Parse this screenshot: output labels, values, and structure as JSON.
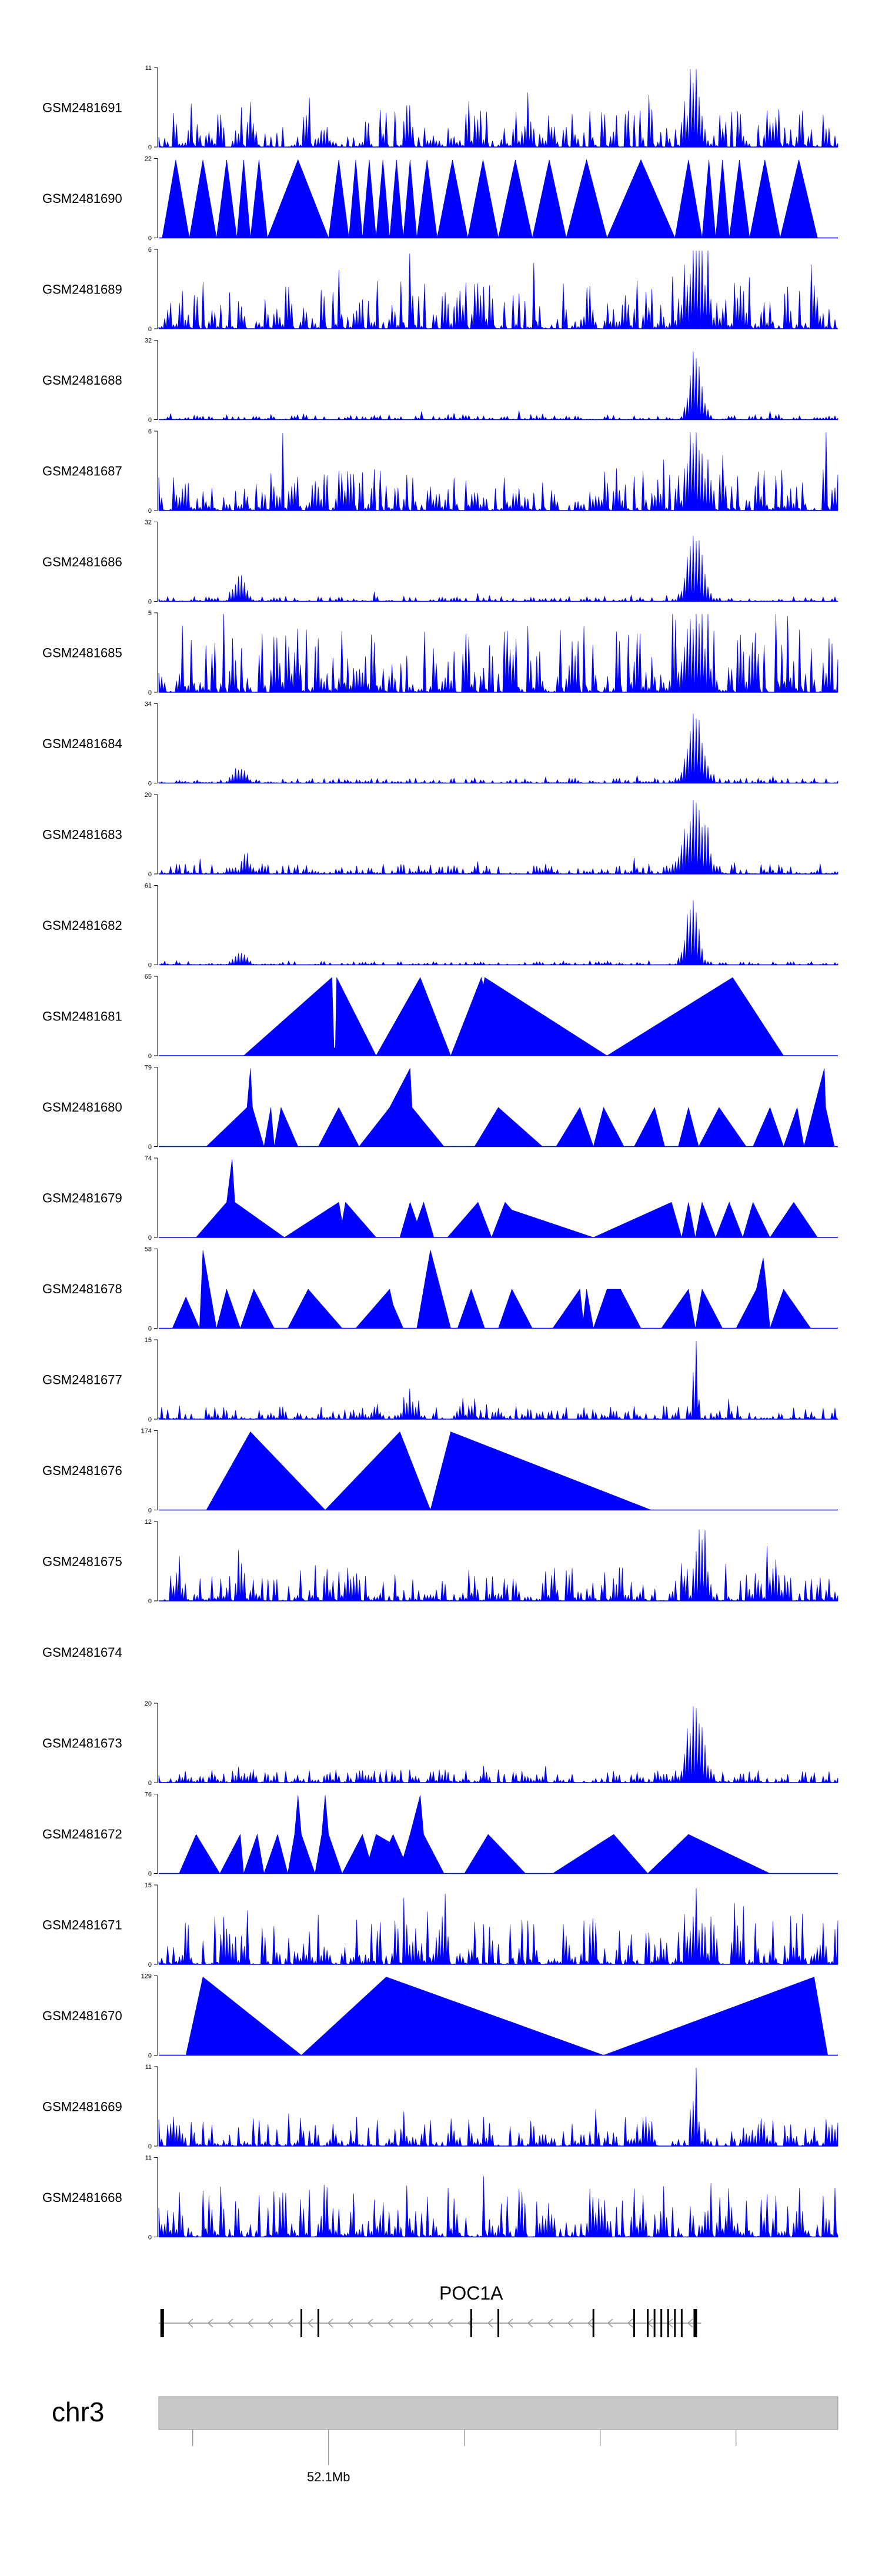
{
  "chart_data": {
    "type": "area",
    "title": "",
    "xlabel": "",
    "ylabel": "",
    "track_color": "#0000FF",
    "n_bins": 230,
    "tracks": [
      {
        "name": "GSM2481691",
        "ymax": 11,
        "pattern": "noise",
        "seed": 1,
        "level": 0.22,
        "peakAt": 0.79,
        "peakH": 1.0,
        "peakW": 0.012
      },
      {
        "name": "GSM2481690",
        "ymax": 22,
        "pattern": "tri",
        "peaks": [
          0.005,
          0.045,
          0.085,
          0.115,
          0.135,
          0.16,
          0.25,
          0.28,
          0.3,
          0.32,
          0.34,
          0.36,
          0.38,
          0.41,
          0.455,
          0.5,
          0.55,
          0.6,
          0.66,
          0.76,
          0.8,
          0.82,
          0.84,
          0.87,
          0.915
        ],
        "end": 0.97,
        "seed": 2
      },
      {
        "name": "GSM2481689",
        "ymax": 6,
        "pattern": "noise",
        "seed": 3,
        "level": 0.3,
        "peakAt": 0.79,
        "peakH": 1.0,
        "peakW": 0.02
      },
      {
        "name": "GSM2481688",
        "ymax": 32,
        "pattern": "noise",
        "seed": 4,
        "level": 0.03,
        "peakAt": 0.79,
        "peakH": 0.95,
        "peakW": 0.012
      },
      {
        "name": "GSM2481687",
        "ymax": 6,
        "pattern": "noise",
        "seed": 5,
        "level": 0.25,
        "peakAt": 0.79,
        "peakH": 0.95,
        "peakW": 0.015
      },
      {
        "name": "GSM2481686",
        "ymax": 32,
        "pattern": "noise",
        "seed": 6,
        "level": 0.03,
        "peakAt": 0.79,
        "peakH": 0.95,
        "peakW": 0.015,
        "smallAt": 0.12,
        "smallH": 0.3
      },
      {
        "name": "GSM2481685",
        "ymax": 5,
        "pattern": "noise",
        "seed": 7,
        "level": 0.4,
        "peakAt": 0.79,
        "peakH": 1.0,
        "peakW": 0.02
      },
      {
        "name": "GSM2481684",
        "ymax": 34,
        "pattern": "noise",
        "seed": 8,
        "level": 0.03,
        "peakAt": 0.79,
        "peakH": 0.97,
        "peakW": 0.015,
        "smallAt": 0.12,
        "smallH": 0.18
      },
      {
        "name": "GSM2481683",
        "ymax": 20,
        "pattern": "noise",
        "seed": 9,
        "level": 0.06,
        "peakAt": 0.79,
        "peakH": 0.95,
        "peakW": 0.02,
        "smallAt": 0.13,
        "smallH": 0.15
      },
      {
        "name": "GSM2481682",
        "ymax": 61,
        "pattern": "noise",
        "seed": 10,
        "level": 0.02,
        "peakAt": 0.785,
        "peakH": 0.97,
        "peakW": 0.012,
        "smallAt": 0.12,
        "smallH": 0.15
      },
      {
        "name": "GSM2481681",
        "ymax": 65,
        "pattern": "tri",
        "peaks": [
          0.26,
          0.38,
          0.48
        ],
        "end": 0.67,
        "seed": 11,
        "start": 0.125,
        "custom": [
          [
            0.125,
            0
          ],
          [
            0.255,
            1
          ],
          [
            0.258,
            0.1
          ],
          [
            0.26,
            0.1
          ],
          [
            0.262,
            1
          ],
          [
            0.32,
            0
          ],
          [
            0.385,
            1
          ],
          [
            0.43,
            0
          ],
          [
            0.475,
            1
          ],
          [
            0.478,
            0.9
          ],
          [
            0.48,
            1
          ],
          [
            0.66,
            0
          ],
          [
            0.845,
            1
          ],
          [
            0.92,
            0
          ]
        ]
      },
      {
        "name": "GSM2481680",
        "ymax": 79,
        "pattern": "custom",
        "custom": [
          [
            0.07,
            0
          ],
          [
            0.13,
            0.5
          ],
          [
            0.135,
            1
          ],
          [
            0.138,
            0.5
          ],
          [
            0.155,
            0
          ],
          [
            0.165,
            0.5
          ],
          [
            0.17,
            0
          ],
          [
            0.18,
            0.5
          ],
          [
            0.205,
            0
          ],
          [
            0.235,
            0
          ],
          [
            0.265,
            0.5
          ],
          [
            0.295,
            0
          ],
          [
            0.34,
            0.5
          ],
          [
            0.37,
            1
          ],
          [
            0.373,
            0.5
          ],
          [
            0.42,
            0
          ],
          [
            0.465,
            0
          ],
          [
            0.5,
            0.5
          ],
          [
            0.565,
            0
          ],
          [
            0.585,
            0
          ],
          [
            0.62,
            0.5
          ],
          [
            0.64,
            0
          ],
          [
            0.655,
            0.5
          ],
          [
            0.685,
            0
          ],
          [
            0.7,
            0
          ],
          [
            0.73,
            0.5
          ],
          [
            0.745,
            0
          ],
          [
            0.765,
            0
          ],
          [
            0.78,
            0.5
          ],
          [
            0.795,
            0
          ],
          [
            0.825,
            0.5
          ],
          [
            0.865,
            0
          ],
          [
            0.875,
            0
          ],
          [
            0.9,
            0.5
          ],
          [
            0.92,
            0
          ],
          [
            0.94,
            0.5
          ],
          [
            0.95,
            0
          ],
          [
            0.965,
            0.5
          ],
          [
            0.98,
            1
          ],
          [
            0.982,
            0.5
          ],
          [
            0.995,
            0
          ]
        ]
      },
      {
        "name": "GSM2481679",
        "ymax": 74,
        "pattern": "custom",
        "custom": [
          [
            0.055,
            0
          ],
          [
            0.1,
            0.45
          ],
          [
            0.108,
            1
          ],
          [
            0.112,
            0.45
          ],
          [
            0.185,
            0
          ],
          [
            0.265,
            0.45
          ],
          [
            0.27,
            0.2
          ],
          [
            0.275,
            0.45
          ],
          [
            0.32,
            0
          ],
          [
            0.355,
            0
          ],
          [
            0.37,
            0.45
          ],
          [
            0.38,
            0.2
          ],
          [
            0.39,
            0.45
          ],
          [
            0.405,
            0
          ],
          [
            0.425,
            0
          ],
          [
            0.47,
            0.45
          ],
          [
            0.49,
            0
          ],
          [
            0.51,
            0.45
          ],
          [
            0.52,
            0.35
          ],
          [
            0.64,
            0
          ],
          [
            0.755,
            0.45
          ],
          [
            0.77,
            0
          ],
          [
            0.78,
            0.45
          ],
          [
            0.79,
            0
          ],
          [
            0.8,
            0.45
          ],
          [
            0.82,
            0
          ],
          [
            0.84,
            0.45
          ],
          [
            0.86,
            0
          ],
          [
            0.875,
            0.45
          ],
          [
            0.9,
            0
          ],
          [
            0.935,
            0.45
          ],
          [
            0.97,
            0
          ]
        ]
      },
      {
        "name": "GSM2481678",
        "ymax": 58,
        "pattern": "custom",
        "custom": [
          [
            0.02,
            0
          ],
          [
            0.04,
            0.4
          ],
          [
            0.06,
            0
          ],
          [
            0.065,
            1
          ],
          [
            0.085,
            0
          ],
          [
            0.1,
            0.5
          ],
          [
            0.12,
            0
          ],
          [
            0.14,
            0.5
          ],
          [
            0.17,
            0
          ],
          [
            0.19,
            0
          ],
          [
            0.22,
            0.5
          ],
          [
            0.27,
            0
          ],
          [
            0.29,
            0
          ],
          [
            0.34,
            0.5
          ],
          [
            0.345,
            0.3
          ],
          [
            0.36,
            0
          ],
          [
            0.38,
            0
          ],
          [
            0.4,
            1
          ],
          [
            0.43,
            0
          ],
          [
            0.44,
            0
          ],
          [
            0.46,
            0.5
          ],
          [
            0.48,
            0
          ],
          [
            0.5,
            0
          ],
          [
            0.52,
            0.5
          ],
          [
            0.55,
            0
          ],
          [
            0.58,
            0
          ],
          [
            0.62,
            0.5
          ],
          [
            0.625,
            0.1
          ],
          [
            0.63,
            0.5
          ],
          [
            0.64,
            0
          ],
          [
            0.66,
            0.5
          ],
          [
            0.68,
            0.5
          ],
          [
            0.71,
            0
          ],
          [
            0.74,
            0
          ],
          [
            0.78,
            0.5
          ],
          [
            0.79,
            0
          ],
          [
            0.8,
            0.5
          ],
          [
            0.83,
            0
          ],
          [
            0.85,
            0
          ],
          [
            0.88,
            0.5
          ],
          [
            0.89,
            0.9
          ],
          [
            0.895,
            0.5
          ],
          [
            0.9,
            0
          ],
          [
            0.92,
            0.5
          ],
          [
            0.96,
            0
          ]
        ]
      },
      {
        "name": "GSM2481677",
        "ymax": 15,
        "pattern": "noise",
        "seed": 14,
        "level": 0.08,
        "peakAt": 0.79,
        "peakH": 0.95,
        "peakW": 0.005,
        "smallAt": 0.37,
        "smallH": 0.25
      },
      {
        "name": "GSM2481676",
        "ymax": 174,
        "pattern": "custom",
        "custom": [
          [
            0.07,
            0
          ],
          [
            0.135,
            1
          ],
          [
            0.245,
            0
          ],
          [
            0.355,
            1
          ],
          [
            0.4,
            0
          ],
          [
            0.43,
            1
          ],
          [
            0.725,
            0
          ]
        ]
      },
      {
        "name": "GSM2481675",
        "ymax": 12,
        "pattern": "noise",
        "seed": 16,
        "level": 0.2,
        "peakAt": 0.8,
        "peakH": 0.9,
        "peakW": 0.01
      },
      {
        "name": "GSM2481674",
        "ymax": null,
        "pattern": "empty"
      },
      {
        "name": "GSM2481673",
        "ymax": 20,
        "pattern": "noise",
        "seed": 18,
        "level": 0.08,
        "peakAt": 0.79,
        "peakH": 0.98,
        "peakW": 0.015
      },
      {
        "name": "GSM2481672",
        "ymax": 76,
        "pattern": "custom",
        "custom": [
          [
            0.03,
            0
          ],
          [
            0.055,
            0.5
          ],
          [
            0.09,
            0
          ],
          [
            0.12,
            0.5
          ],
          [
            0.125,
            0
          ],
          [
            0.145,
            0.5
          ],
          [
            0.155,
            0
          ],
          [
            0.175,
            0.5
          ],
          [
            0.19,
            0
          ],
          [
            0.2,
            0.5
          ],
          [
            0.205,
            1
          ],
          [
            0.21,
            0.5
          ],
          [
            0.23,
            0
          ],
          [
            0.24,
            0.5
          ],
          [
            0.245,
            1
          ],
          [
            0.25,
            0.5
          ],
          [
            0.27,
            0
          ],
          [
            0.3,
            0.5
          ],
          [
            0.31,
            0.2
          ],
          [
            0.32,
            0.5
          ],
          [
            0.34,
            0.4
          ],
          [
            0.345,
            0.5
          ],
          [
            0.36,
            0.2
          ],
          [
            0.37,
            0.5
          ],
          [
            0.385,
            1
          ],
          [
            0.39,
            0.5
          ],
          [
            0.42,
            0
          ],
          [
            0.45,
            0
          ],
          [
            0.485,
            0.5
          ],
          [
            0.54,
            0
          ],
          [
            0.58,
            0
          ],
          [
            0.67,
            0.5
          ],
          [
            0.72,
            0
          ],
          [
            0.78,
            0.5
          ],
          [
            0.9,
            0
          ]
        ]
      },
      {
        "name": "GSM2481671",
        "ymax": 15,
        "pattern": "noise",
        "seed": 21,
        "level": 0.3,
        "peakAt": 0.79,
        "peakH": 0.75,
        "peakW": 0.008
      },
      {
        "name": "GSM2481670",
        "ymax": 129,
        "pattern": "custom",
        "custom": [
          [
            0.04,
            0
          ],
          [
            0.065,
            1
          ],
          [
            0.21,
            0
          ],
          [
            0.335,
            1
          ],
          [
            0.655,
            0
          ],
          [
            0.965,
            1
          ],
          [
            0.985,
            0
          ]
        ]
      },
      {
        "name": "GSM2481669",
        "ymax": 11,
        "pattern": "noise",
        "seed": 23,
        "level": 0.18,
        "peakAt": 0.79,
        "peakH": 0.95,
        "peakW": 0.005
      },
      {
        "name": "GSM2481668",
        "ymax": 11,
        "pattern": "noise",
        "seed": 24,
        "level": 0.3,
        "peakAt": 0.5,
        "peakH": 0.0,
        "peakW": 0.01
      }
    ],
    "gene": {
      "name": "POC1A",
      "exons": [
        0.005,
        0.21,
        0.235,
        0.46,
        0.5,
        0.64,
        0.7,
        0.72,
        0.73,
        0.74,
        0.75,
        0.76,
        0.77,
        0.79
      ],
      "start": 0.0,
      "end": 0.79,
      "strand": "-"
    },
    "ideogram": {
      "chrom": "chr3",
      "tick_positions": [
        0.05,
        0.25,
        0.45,
        0.65,
        0.85
      ],
      "labeled_tick": 0.25,
      "labeled_tick_text": "52.1Mb"
    }
  }
}
